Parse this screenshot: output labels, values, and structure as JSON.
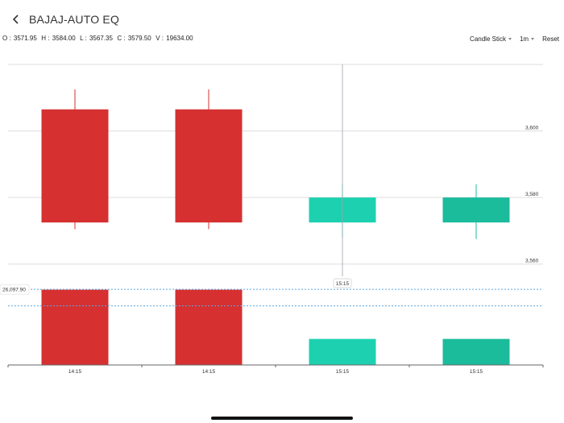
{
  "header": {
    "title": "BAJAJ-AUTO EQ"
  },
  "ohlc": {
    "o_label": "O :",
    "o": "3571.95",
    "h_label": "H :",
    "h": "3584.00",
    "l_label": "L :",
    "l": "3567.35",
    "c_label": "C :",
    "c": "3579.50",
    "v_label": "V :",
    "v": "19634.00"
  },
  "controls": {
    "chart_type": "Candle Stick",
    "interval": "1m",
    "reset": "Reset"
  },
  "colors": {
    "down": "#d63031",
    "up": "#1dd1b0",
    "up_last": "#1abc9c",
    "grid": "#dddddd",
    "crosshair": "#9aa4ad",
    "ref_line": "#5aa8e6"
  },
  "chart_data": {
    "type": "candlestick",
    "y_ticks": [
      "3,600",
      "3,580",
      "3,560"
    ],
    "y_tick_values": [
      3600,
      3580,
      3560
    ],
    "ylim": [
      3556.3,
      3620
    ],
    "candles": [
      {
        "x": "14:15",
        "open": 3606.5,
        "high": 3612.5,
        "low": 3570.5,
        "close": 3572.5,
        "volume": 26000,
        "color": "down"
      },
      {
        "x": "14:15",
        "open": 3606.5,
        "high": 3612.5,
        "low": 3570.5,
        "close": 3572.5,
        "volume": 26000,
        "color": "down"
      },
      {
        "x": "15:15",
        "open": 3572.5,
        "high": 3584.0,
        "low": 3568.0,
        "close": 3580.0,
        "volume": 9000,
        "color": "up"
      },
      {
        "x": "15:15",
        "open": 3572.5,
        "high": 3584.0,
        "low": 3567.5,
        "close": 3580.0,
        "volume": 9000,
        "color": "up_last"
      }
    ],
    "volume_max": 30600,
    "volume_ref_value": 26097.9,
    "volume_ref_label": "26,097.90",
    "volume_avg_value": 20400,
    "crosshair_label": "15:15",
    "crosshair_index": 2
  }
}
